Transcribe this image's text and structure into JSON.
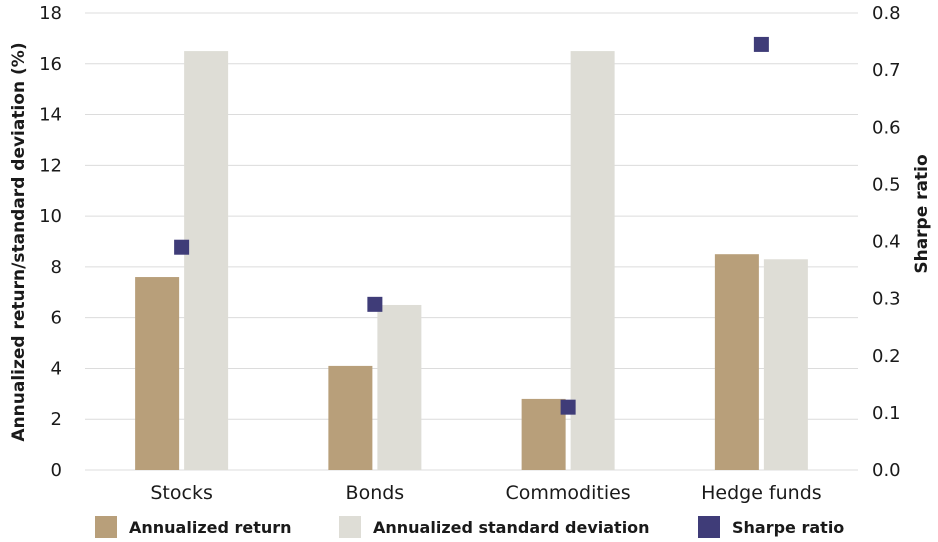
{
  "chart_data": {
    "type": "bar",
    "categories": [
      "Stocks",
      "Bonds",
      "Commodities",
      "Hedge funds"
    ],
    "series": [
      {
        "name": "Annualized return",
        "axis": "left",
        "mark": "bar",
        "color": "#b89f7a",
        "values": [
          7.6,
          4.1,
          2.8,
          8.5
        ]
      },
      {
        "name": "Annualized standard deviation",
        "axis": "left",
        "mark": "bar",
        "color": "#deddd6",
        "values": [
          16.5,
          6.5,
          16.5,
          8.3
        ]
      },
      {
        "name": "Sharpe ratio",
        "axis": "right",
        "mark": "square",
        "color": "#3f3c78",
        "values": [
          0.39,
          0.29,
          0.11,
          0.745
        ]
      }
    ],
    "ylabel_left": "Annualized return/standard deviation (%)",
    "ylabel_right": "Sharpe ratio",
    "ylim_left": [
      0,
      18
    ],
    "ylim_right": [
      0.0,
      0.8
    ],
    "yticks_left": [
      "0",
      "2",
      "4",
      "6",
      "8",
      "10",
      "12",
      "14",
      "16",
      "18"
    ],
    "yticks_right": [
      "0.0",
      "0.1",
      "0.2",
      "0.3",
      "0.4",
      "0.5",
      "0.6",
      "0.7",
      "0.8"
    ],
    "grid": true,
    "legend_position": "bottom"
  },
  "legend": {
    "return_label": "Annualized return",
    "stdev_label": "Annualized standard deviation",
    "sharpe_label": "Sharpe ratio"
  }
}
